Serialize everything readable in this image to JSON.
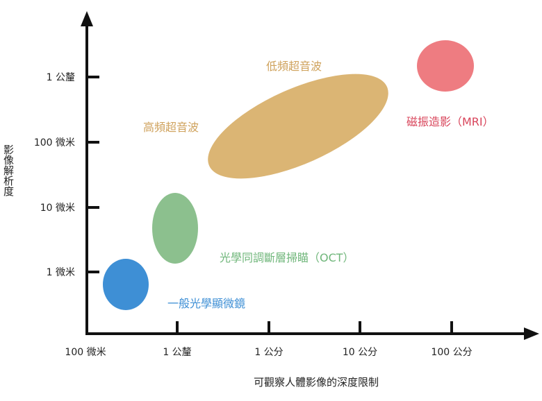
{
  "chart_data": {
    "type": "scatter",
    "title": "",
    "xlabel": "可觀察人體影像的深度限制",
    "ylabel": "影像解析度",
    "x_scale": "log",
    "y_scale": "log",
    "x_ticks": [
      {
        "label": "100 微米",
        "value_m": 0.0001
      },
      {
        "label": "1 公釐",
        "value_m": 0.001
      },
      {
        "label": "1 公分",
        "value_m": 0.01
      },
      {
        "label": "10 公分",
        "value_m": 0.1
      },
      {
        "label": "100 公分",
        "value_m": 1
      }
    ],
    "y_ticks": [
      {
        "label": "1 微米",
        "value_m": 1e-06
      },
      {
        "label": "10 微米",
        "value_m": 1e-05
      },
      {
        "label": "100 微米",
        "value_m": 0.0001
      },
      {
        "label": "1 公釐",
        "value_m": 0.001
      }
    ],
    "xlim_m": [
      5e-05,
      3
    ],
    "ylim_m": [
      3e-07,
      0.02
    ],
    "grid": false,
    "legend": "none",
    "regions": [
      {
        "name": "一般光學顯微鏡",
        "color": "#3e8fd5",
        "label_color": "#3e8fd5",
        "depth_center_m": 0.00028,
        "resolution_center_m": 5e-07
      },
      {
        "name": "光學同調斷層掃瞄（OCT）",
        "color": "#8cc08e",
        "label_color": "#6fb67a",
        "depth_center_m": 0.001,
        "resolution_center_m": 4.5e-06
      },
      {
        "name": "高頻超音波",
        "color": "#dbb574",
        "label_color": "#cfa25c",
        "depth_center_m": 0.03,
        "resolution_center_m": 0.00012
      },
      {
        "name": "低頻超音波",
        "color": "#dbb574",
        "label_color": "#cfa25c",
        "depth_center_m": 0.03,
        "resolution_center_m": 0.00012
      },
      {
        "name": "磁振造影（MRI）",
        "color": "#ee7c81",
        "label_color": "#d8445a",
        "depth_center_m": 0.8,
        "resolution_center_m": 0.0015
      }
    ]
  }
}
